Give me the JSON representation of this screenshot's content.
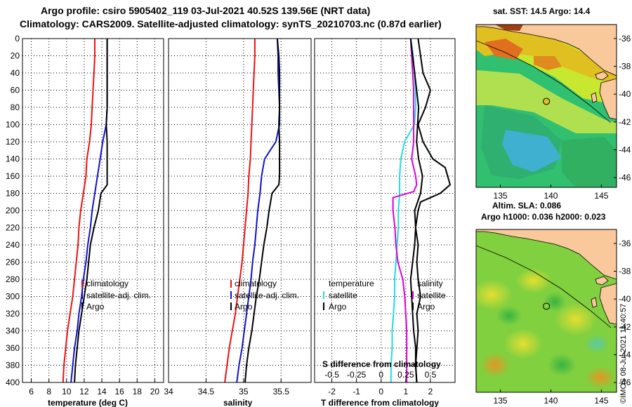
{
  "header": {
    "line1": "Argo profile: csiro 5905402_119 03-Jul-2021 40.52S 139.56E (NRT data)",
    "line2": "Climatology: CARS2009. Satellite-adjusted climatology: synTS_20210703.nc (0.87d earlier)"
  },
  "watermark": "©IMOS 08-Jul-2021 11:40:57",
  "colors": {
    "climatology": "#ee1111",
    "satellite": "#1111cc",
    "argo": "#000000",
    "salinity_diff": "#dd00dd",
    "temperature_diff": "#22dddd",
    "land": "#f9c89b"
  },
  "chart_data": [
    {
      "id": "temperature",
      "type": "line",
      "xlabel": "temperature (deg C)",
      "ylabel": "",
      "xlim": [
        5,
        21
      ],
      "ylim": [
        0,
        400
      ],
      "y_inverted": true,
      "grid": true,
      "xticks": [
        "6",
        "8",
        "10",
        "12",
        "14",
        "16",
        "18",
        "20"
      ],
      "xtick_values": [
        6,
        8,
        10,
        12,
        14,
        16,
        18,
        20
      ],
      "yticks": [
        "0",
        "20",
        "40",
        "60",
        "80",
        "100",
        "120",
        "140",
        "160",
        "180",
        "200",
        "220",
        "240",
        "260",
        "280",
        "300",
        "320",
        "340",
        "360",
        "380",
        "400"
      ],
      "legend": {
        "position": "center-right",
        "entries": [
          "climatology",
          "satellite-adj. clim.",
          "Argo"
        ]
      },
      "series": [
        {
          "name": "climatology",
          "color": "#ee1111",
          "x": [
            13.2,
            13.2,
            13.1,
            13.0,
            12.9,
            12.8,
            12.6,
            12.3,
            12.2,
            11.9,
            11.6,
            11.4,
            11.3,
            11.1,
            10.9,
            10.7,
            10.4,
            10.1,
            9.9,
            9.7,
            9.6
          ],
          "y": [
            0,
            20,
            40,
            60,
            80,
            100,
            120,
            140,
            160,
            180,
            200,
            220,
            240,
            260,
            280,
            300,
            320,
            340,
            360,
            380,
            400
          ]
        },
        {
          "name": "satellite-adj. clim.",
          "color": "#1111cc",
          "x": [
            14.6,
            14.6,
            14.6,
            14.6,
            14.6,
            14.5,
            14.1,
            13.8,
            13.5,
            13.2,
            12.9,
            12.7,
            12.4,
            12.2,
            11.9,
            11.7,
            11.4,
            11.2,
            10.9,
            10.7,
            10.5
          ],
          "y": [
            0,
            20,
            40,
            60,
            80,
            100,
            120,
            140,
            160,
            180,
            200,
            220,
            240,
            260,
            280,
            300,
            320,
            340,
            360,
            380,
            400
          ]
        },
        {
          "name": "Argo",
          "color": "#000000",
          "x": [
            14.6,
            14.6,
            14.6,
            14.6,
            14.6,
            14.5,
            14.6,
            14.6,
            14.6,
            14.6,
            13.9,
            13.6,
            13.1,
            12.7,
            12.5,
            12.3,
            12.0,
            11.7,
            11.4,
            11.2,
            11.0,
            10.9
          ],
          "y": [
            0,
            20,
            40,
            60,
            80,
            100,
            120,
            140,
            160,
            170,
            180,
            200,
            220,
            240,
            260,
            280,
            300,
            320,
            340,
            360,
            380,
            400
          ]
        }
      ]
    },
    {
      "id": "salinity",
      "type": "line",
      "xlabel": "salinity",
      "ylabel": "",
      "xlim": [
        34,
        35.9
      ],
      "ylim": [
        0,
        400
      ],
      "y_inverted": true,
      "grid": true,
      "xticks": [
        "34",
        "34.5",
        "35",
        "35.5"
      ],
      "xtick_values": [
        34,
        34.5,
        35,
        35.5
      ],
      "legend": {
        "position": "center-right",
        "entries": [
          "climatology",
          "satellite-adj. clim.",
          "Argo"
        ]
      },
      "series": [
        {
          "name": "climatology",
          "color": "#ee1111",
          "x": [
            35.15,
            35.15,
            35.14,
            35.13,
            35.12,
            35.11,
            35.1,
            35.09,
            35.07,
            35.06,
            35.04,
            35.02,
            35.0,
            34.98,
            34.95,
            34.92,
            34.89,
            34.85,
            34.81,
            34.78,
            34.75
          ],
          "y": [
            0,
            20,
            40,
            60,
            80,
            100,
            120,
            140,
            160,
            180,
            200,
            220,
            240,
            260,
            280,
            300,
            320,
            340,
            360,
            380,
            400
          ]
        },
        {
          "name": "satellite-adj. clim.",
          "color": "#1111cc",
          "x": [
            35.45,
            35.46,
            35.46,
            35.47,
            35.48,
            35.48,
            35.43,
            35.28,
            35.24,
            35.22,
            35.19,
            35.17,
            35.15,
            35.12,
            35.1,
            35.07,
            35.04,
            35.01,
            34.98,
            34.94,
            34.91
          ],
          "y": [
            0,
            20,
            40,
            60,
            80,
            100,
            120,
            140,
            160,
            180,
            200,
            220,
            240,
            260,
            280,
            300,
            320,
            340,
            360,
            380,
            400
          ]
        },
        {
          "name": "Argo",
          "color": "#000000",
          "x": [
            35.45,
            35.47,
            35.48,
            35.48,
            35.48,
            35.47,
            35.48,
            35.48,
            35.48,
            35.47,
            35.38,
            35.34,
            35.31,
            35.27,
            35.24,
            35.21,
            35.17,
            35.14,
            35.11,
            35.07,
            35.04,
            35.02
          ],
          "y": [
            0,
            20,
            40,
            60,
            80,
            100,
            120,
            140,
            160,
            170,
            180,
            200,
            220,
            240,
            260,
            280,
            300,
            320,
            340,
            360,
            380,
            400
          ]
        }
      ]
    },
    {
      "id": "difference",
      "type": "line",
      "xlabel": "T difference from climatology",
      "top_axis_label": "S difference from climatology",
      "xlim": [
        -2.7,
        3.0
      ],
      "x2lim": [
        -0.675,
        0.75
      ],
      "ylim": [
        0,
        400
      ],
      "y_inverted": true,
      "grid": true,
      "xticks": [
        "-2",
        "-1",
        "0",
        "1",
        "2"
      ],
      "xtick_values": [
        -2,
        -1,
        0,
        1,
        2
      ],
      "x2ticks": [
        "-0.5",
        "-0.25",
        "0",
        "0.25",
        "0.5"
      ],
      "x2tick_values": [
        -0.5,
        -0.25,
        0,
        0.25,
        0.5
      ],
      "legend": {
        "position": "center",
        "groups": [
          {
            "heading": "temperature",
            "entries": [
              "satellite",
              "Argo"
            ]
          },
          {
            "heading": "salinity",
            "entries": [
              "satellite",
              "Argo"
            ]
          }
        ]
      },
      "series": [
        {
          "name": "temperature satellite",
          "color": "#22dddd",
          "x": [
            1.2,
            1.3,
            1.35,
            1.4,
            1.4,
            1.35,
            0.95,
            0.8,
            0.75,
            0.75,
            0.7,
            0.7,
            0.65,
            0.6,
            0.55,
            0.55,
            0.5,
            0.45,
            0.45,
            0.4,
            0.4
          ],
          "y": [
            0,
            20,
            40,
            60,
            80,
            100,
            120,
            140,
            160,
            180,
            200,
            220,
            240,
            260,
            280,
            300,
            320,
            340,
            360,
            380,
            400
          ]
        },
        {
          "name": "temperature Argo",
          "color": "#000000",
          "x": [
            1.5,
            1.6,
            1.7,
            2.0,
            1.8,
            1.5,
            1.7,
            2.1,
            2.6,
            2.8,
            2.4,
            1.6,
            1.5,
            1.4,
            1.5,
            1.45,
            1.5,
            1.6,
            1.45,
            1.5,
            1.4,
            1.45
          ],
          "y": [
            0,
            20,
            40,
            60,
            80,
            100,
            120,
            140,
            150,
            170,
            180,
            190,
            200,
            220,
            240,
            260,
            280,
            300,
            320,
            340,
            380,
            400
          ]
        },
        {
          "name": "salinity satellite",
          "color": "#dd00dd",
          "x": [
            0.3,
            0.31,
            0.32,
            0.33,
            0.33,
            0.33,
            0.33,
            0.31,
            0.33,
            0.35,
            0.36,
            0.33,
            0.12,
            0.12,
            0.14,
            0.15,
            0.17,
            0.22,
            0.24,
            0.26,
            0.26,
            0.26
          ],
          "y": [
            0,
            20,
            40,
            60,
            80,
            100,
            120,
            140,
            150,
            160,
            170,
            178,
            185,
            200,
            220,
            240,
            260,
            280,
            300,
            340,
            380,
            400
          ]
        },
        {
          "name": "salinity Argo",
          "color": "#000000",
          "x": [
            0.3,
            0.32,
            0.34,
            0.36,
            0.38,
            0.37,
            0.36,
            0.38,
            0.42,
            0.4,
            0.34,
            0.35,
            0.34,
            0.32,
            0.3,
            0.31,
            0.32,
            0.33,
            0.35,
            0.35,
            0.36
          ],
          "y": [
            0,
            20,
            40,
            60,
            80,
            100,
            120,
            140,
            160,
            180,
            200,
            220,
            240,
            260,
            280,
            300,
            320,
            340,
            360,
            380,
            400
          ]
        }
      ]
    },
    {
      "id": "sst-map",
      "type": "heatmap",
      "title": "sat. SST: 14.5 Argo: 14.4",
      "xlim": [
        132.6,
        146.5
      ],
      "ylim": [
        -46.7,
        -35.0
      ],
      "xticks": [
        "135",
        "140",
        "145"
      ],
      "xtick_values": [
        135,
        140,
        145
      ],
      "yticks": [
        "-36",
        "-38",
        "-40",
        "-42",
        "-44",
        "-46"
      ],
      "ytick_values": [
        -36,
        -38,
        -40,
        -42,
        -44,
        -46
      ],
      "marker": {
        "lon": 139.56,
        "lat": -40.52
      }
    },
    {
      "id": "sla-map",
      "type": "heatmap",
      "title_line1": "Altim. SLA: 0.086",
      "title_line2": "Argo h1000: 0.036 h2000: 0.023",
      "xlim": [
        132.6,
        146.5
      ],
      "ylim": [
        -46.7,
        -35.0
      ],
      "xticks": [
        "135",
        "140",
        "145"
      ],
      "xtick_values": [
        135,
        140,
        145
      ],
      "yticks": [
        "-36",
        "-38",
        "-40",
        "-42",
        "-44",
        "-46"
      ],
      "ytick_values": [
        -36,
        -38,
        -40,
        -42,
        -44,
        -46
      ],
      "marker": {
        "lon": 139.56,
        "lat": -40.52
      }
    }
  ]
}
